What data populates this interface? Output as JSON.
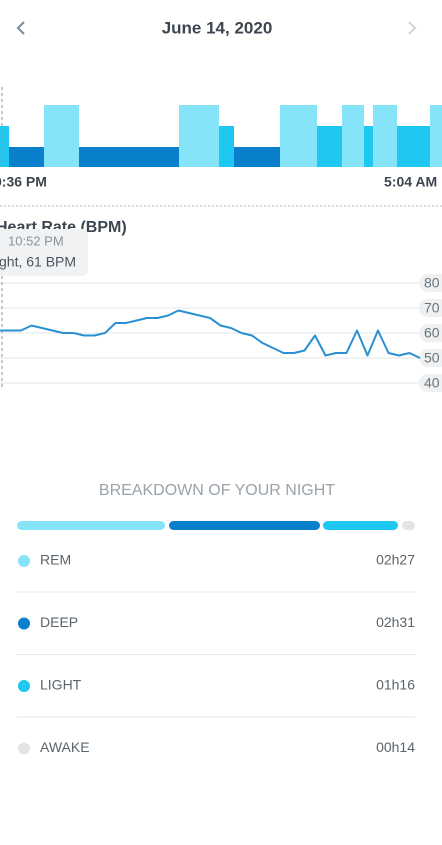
{
  "header": {
    "date": "June 14, 2020"
  },
  "hypnogram": {
    "start_time": "0:36 PM",
    "end_time": "5:04 AM"
  },
  "heart_rate": {
    "title": "Heart Rate (BPM)",
    "tooltip": {
      "time": "10:52 PM",
      "detail": "ght, 61 BPM"
    },
    "values": [
      61,
      61,
      61,
      63,
      62,
      61,
      60,
      60,
      59,
      59,
      60,
      64,
      64,
      65,
      66,
      66,
      67,
      69,
      68,
      67,
      66,
      63,
      62,
      60,
      59,
      56,
      54,
      52,
      52,
      53,
      59,
      51,
      52,
      52,
      61,
      51,
      61,
      52,
      51,
      52,
      50
    ],
    "ylim": [
      40,
      80
    ],
    "yticks": [
      40,
      50,
      60,
      70,
      80
    ],
    "color": "#2a90d2"
  },
  "breakdown": {
    "title": "BREAKDOWN OF YOUR NIGHT",
    "stages": [
      {
        "name": "REM",
        "duration": "02h27",
        "color": "#86e4f8"
      },
      {
        "name": "DEEP",
        "duration": "02h31",
        "color": "#0a7fcc"
      },
      {
        "name": "LIGHT",
        "duration": "01h16",
        "color": "#1ec8f0"
      },
      {
        "name": "AWAKE",
        "duration": "00h14",
        "color": "#e2e4e6"
      }
    ]
  }
}
